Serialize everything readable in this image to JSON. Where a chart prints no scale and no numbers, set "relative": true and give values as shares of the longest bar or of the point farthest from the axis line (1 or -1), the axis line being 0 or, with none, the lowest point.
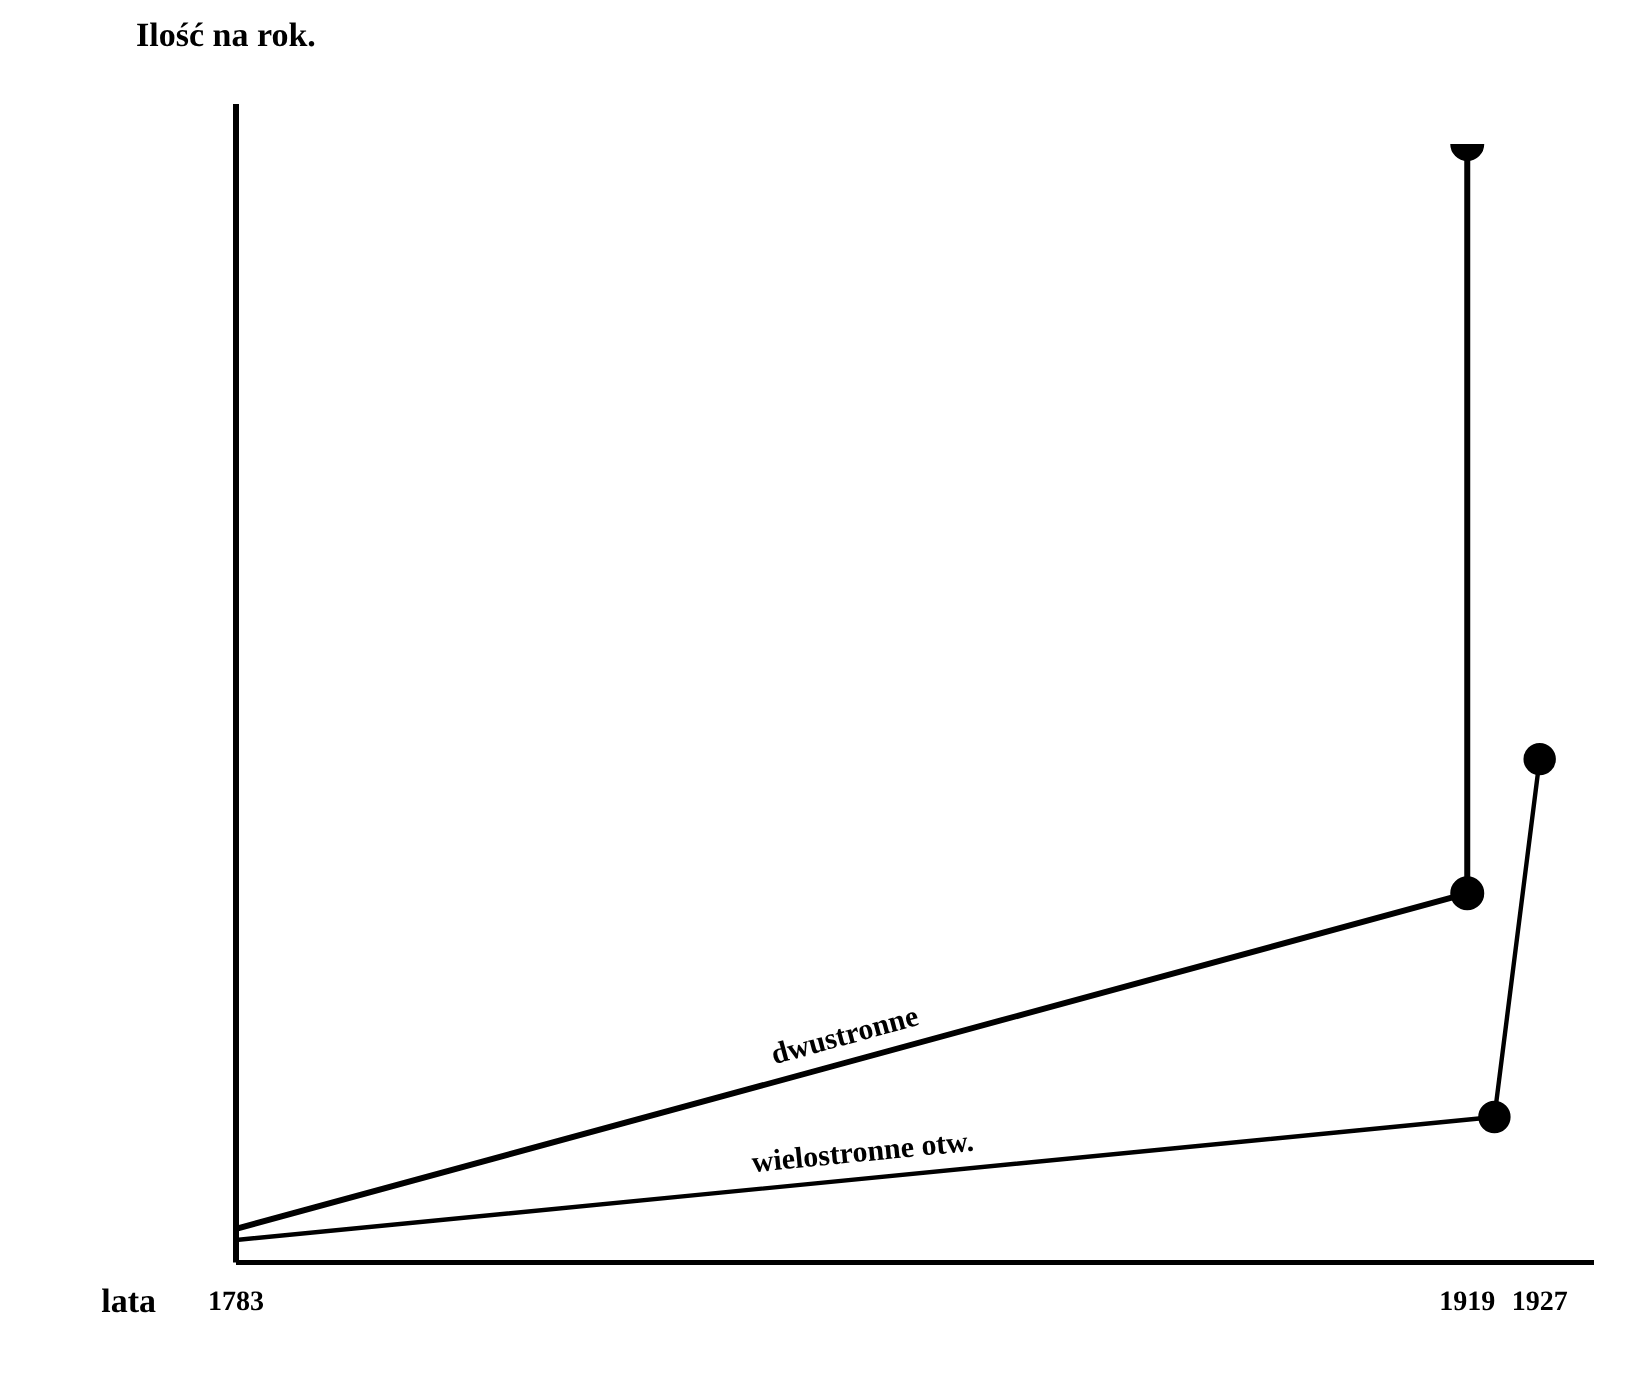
{
  "chart_data": {
    "type": "line",
    "relative": true,
    "xlabel": "lata",
    "ylabel": "Ilość na rok.",
    "xlim": [
      1783,
      1933
    ],
    "xticks": [
      1783,
      1919,
      1927
    ],
    "marker": "circle",
    "grid": false,
    "legend": false,
    "series": [
      {
        "name": "dwustronne",
        "color": "#000000",
        "x": [
          1783,
          1919,
          1919
        ],
        "values": [
          0.03,
          0.33,
          1.0
        ]
      },
      {
        "name": "wielostronne otw.",
        "color": "#000000",
        "x": [
          1783,
          1922,
          1927
        ],
        "values": [
          0.02,
          0.13,
          0.45
        ]
      }
    ]
  }
}
